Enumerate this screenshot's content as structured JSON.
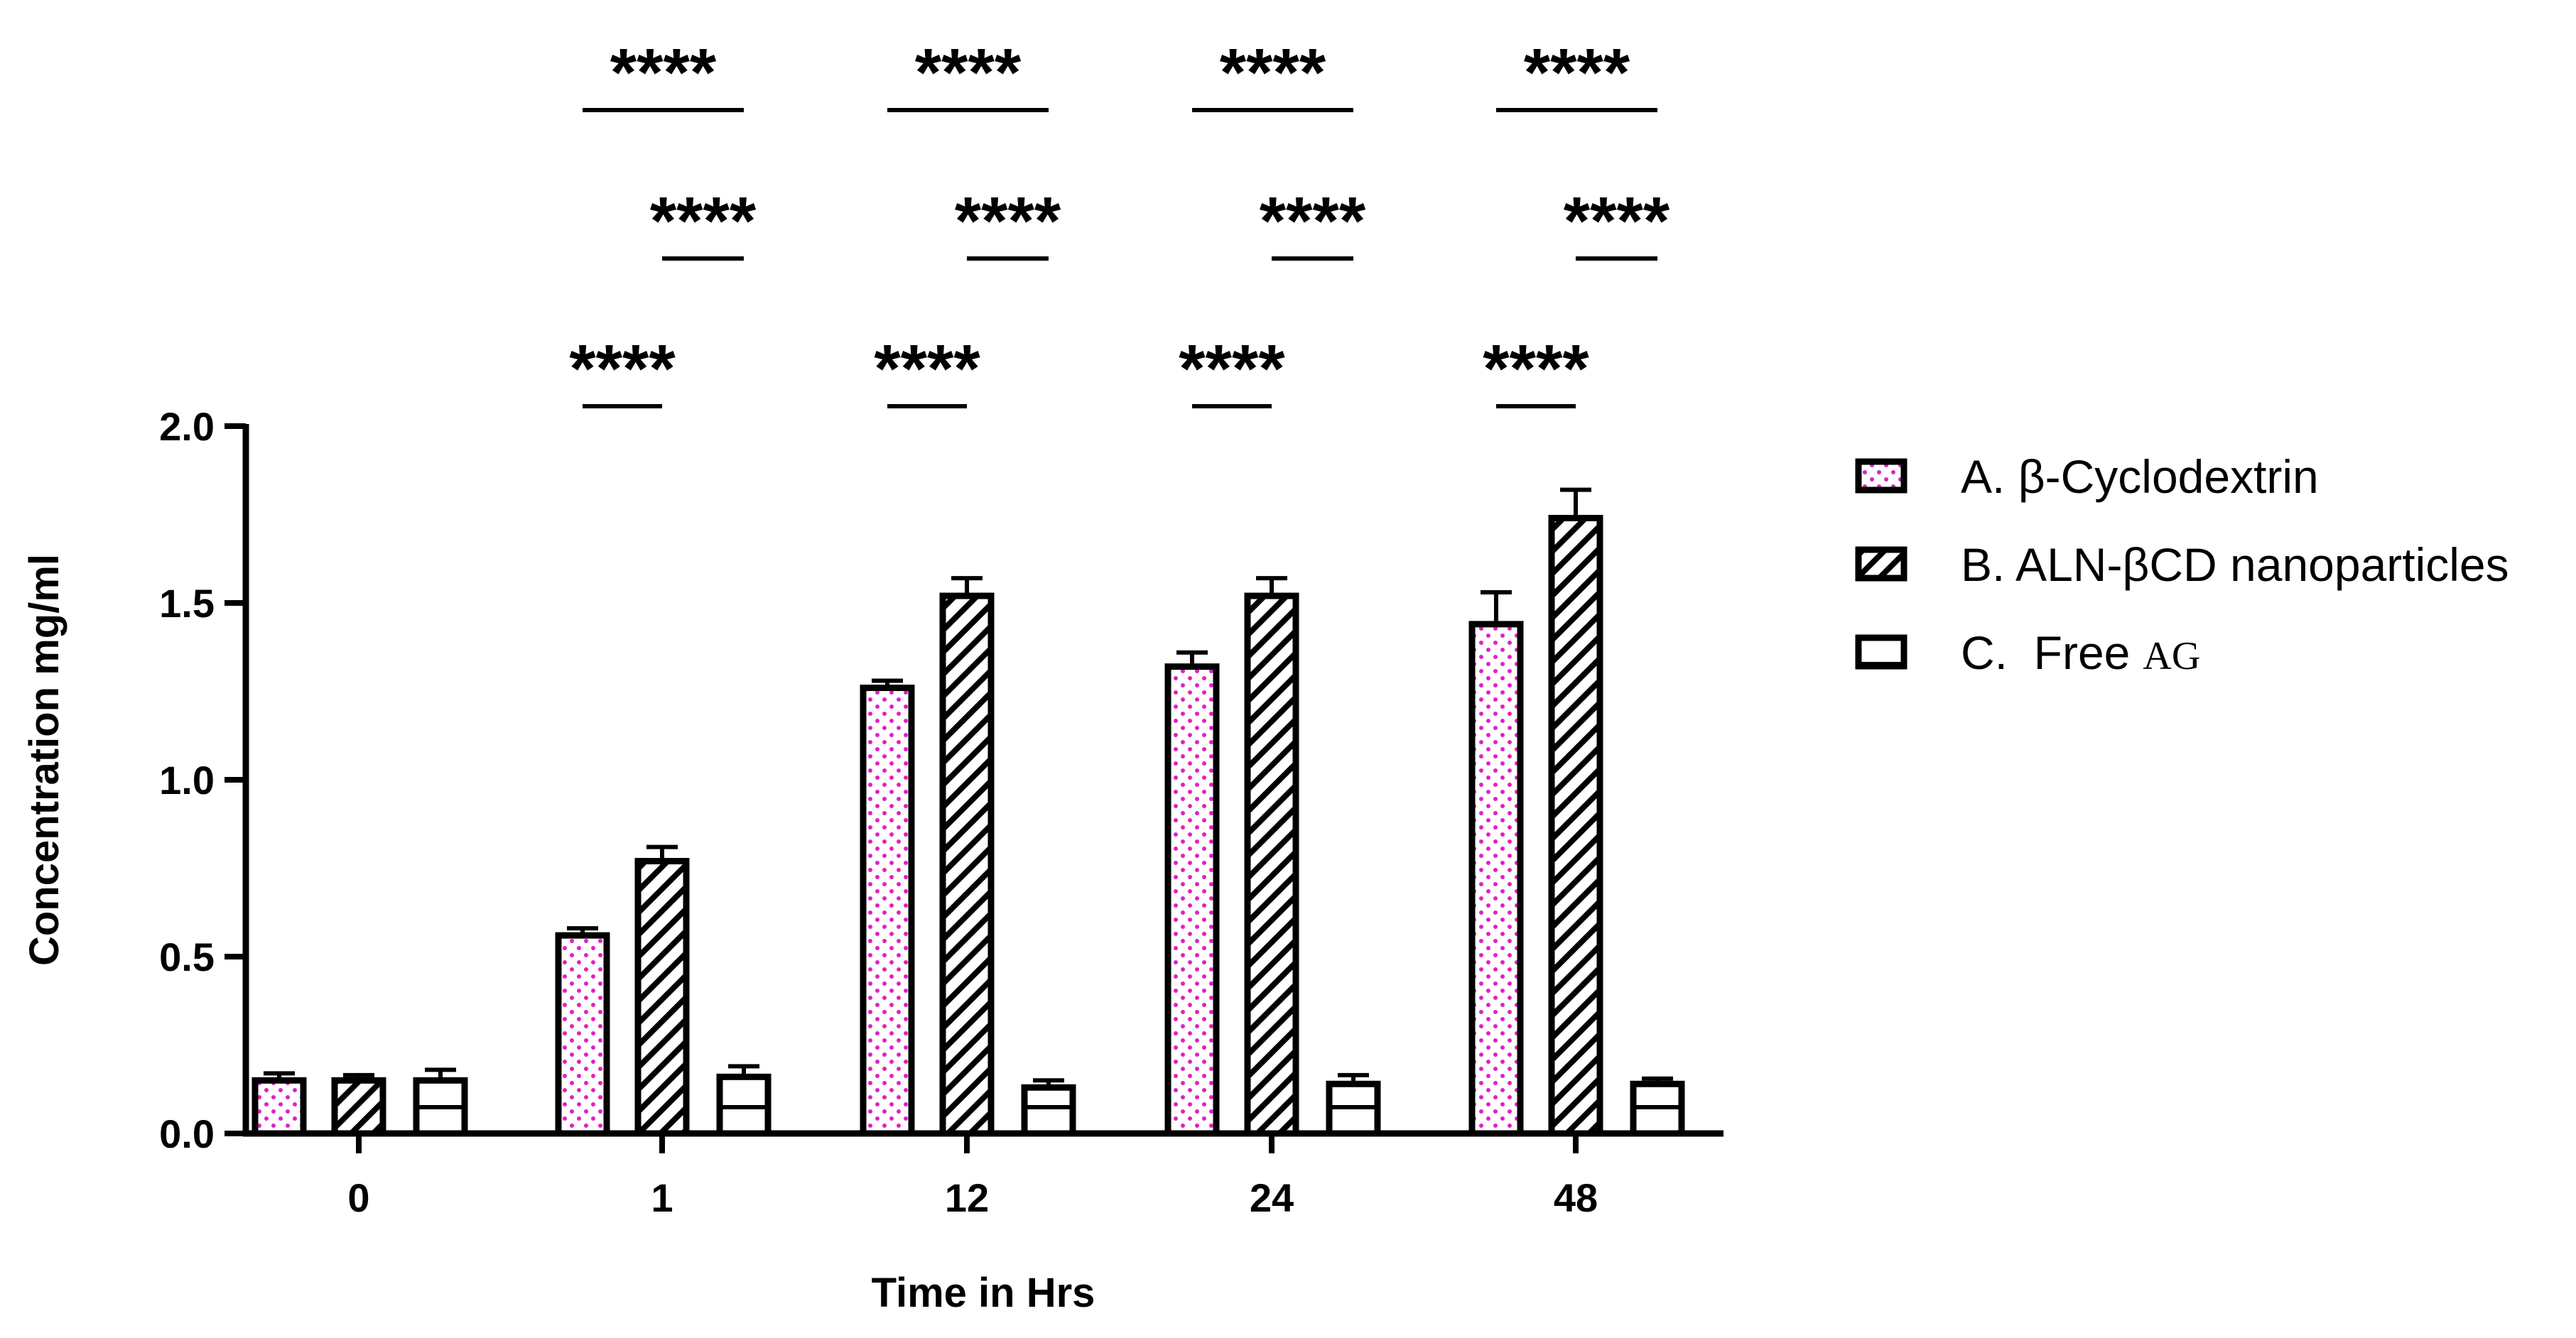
{
  "chart_data": {
    "type": "bar",
    "title": "",
    "xlabel": "Time in Hrs",
    "ylabel": "Concentration mg/ml",
    "ylim": [
      0,
      2.0
    ],
    "yticks": [
      "0.0",
      "0.5",
      "1.0",
      "1.5",
      "2.0"
    ],
    "categories": [
      "0",
      "1",
      "12",
      "24",
      "48"
    ],
    "series": [
      {
        "name": "A. β-Cyclodextrin",
        "values": [
          0.15,
          0.56,
          1.26,
          1.32,
          1.44
        ],
        "errors": [
          0.02,
          0.02,
          0.02,
          0.04,
          0.09
        ],
        "pattern": "dots",
        "color": "#e020c8"
      },
      {
        "name": "B. ALN-βCD nanoparticles",
        "values": [
          0.15,
          0.77,
          1.52,
          1.52,
          1.74
        ],
        "errors": [
          0.015,
          0.04,
          0.05,
          0.05,
          0.08
        ],
        "pattern": "diagonal",
        "color": "#000000"
      },
      {
        "name": "C.  Free",
        "name_suffix": "AG",
        "values": [
          0.15,
          0.16,
          0.13,
          0.14,
          0.14
        ],
        "errors": [
          0.03,
          0.03,
          0.02,
          0.025,
          0.015
        ],
        "pattern": "horizontal",
        "color": "#000000"
      }
    ],
    "significance": {
      "label": "****",
      "comparisons": [
        {
          "category": "1",
          "from": 0,
          "to": 1,
          "label": "****"
        },
        {
          "category": "1",
          "from": 1,
          "to": 2,
          "label": "****"
        },
        {
          "category": "1",
          "from": 0,
          "to": 2,
          "label": "****"
        },
        {
          "category": "12",
          "from": 0,
          "to": 1,
          "label": "****"
        },
        {
          "category": "12",
          "from": 1,
          "to": 2,
          "label": "****"
        },
        {
          "category": "12",
          "from": 0,
          "to": 2,
          "label": "****"
        },
        {
          "category": "24",
          "from": 0,
          "to": 1,
          "label": "****"
        },
        {
          "category": "24",
          "from": 1,
          "to": 2,
          "label": "****"
        },
        {
          "category": "24",
          "from": 0,
          "to": 2,
          "label": "****"
        },
        {
          "category": "48",
          "from": 0,
          "to": 1,
          "label": "****"
        },
        {
          "category": "48",
          "from": 1,
          "to": 2,
          "label": "****"
        },
        {
          "category": "48",
          "from": 0,
          "to": 2,
          "label": "****"
        }
      ]
    },
    "legend_position": "right"
  }
}
